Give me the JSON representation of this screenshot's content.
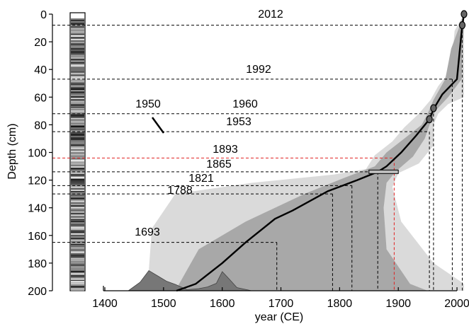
{
  "chart_data": {
    "type": "line",
    "xlabel": "year (CE)",
    "ylabel": "Depth (cm)",
    "xlim": [
      1350,
      2012
    ],
    "ylim": [
      0,
      200
    ],
    "x_ticks": [
      {
        "value": 1400,
        "label": "1400"
      },
      {
        "value": 1500,
        "label": "1500"
      },
      {
        "value": 1600,
        "label": "1600"
      },
      {
        "value": 1700,
        "label": "1700"
      },
      {
        "value": 1800,
        "label": "1800"
      },
      {
        "value": 1900,
        "label": "1900"
      },
      {
        "value": 2000,
        "label": "2000"
      }
    ],
    "y_ticks": [
      {
        "value": 0,
        "label": "0"
      },
      {
        "value": 20,
        "label": "20"
      },
      {
        "value": 40,
        "label": "40"
      },
      {
        "value": 60,
        "label": "60"
      },
      {
        "value": 80,
        "label": "80"
      },
      {
        "value": 100,
        "label": "100"
      },
      {
        "value": 120,
        "label": "120"
      },
      {
        "value": 140,
        "label": "140"
      },
      {
        "value": 160,
        "label": "160"
      },
      {
        "value": 180,
        "label": "180"
      },
      {
        "value": 200,
        "label": "200"
      }
    ],
    "age_model": {
      "median": [
        [
          2012,
          0
        ],
        [
          2009,
          8
        ],
        [
          2005,
          25
        ],
        [
          2000,
          47
        ],
        [
          1975,
          58
        ],
        [
          1961,
          68
        ],
        [
          1953,
          76
        ],
        [
          1930,
          88
        ],
        [
          1905,
          100
        ],
        [
          1880,
          110
        ],
        [
          1865,
          114
        ],
        [
          1830,
          120
        ],
        [
          1780,
          128
        ],
        [
          1720,
          142
        ],
        [
          1690,
          148
        ],
        [
          1640,
          165
        ],
        [
          1600,
          180
        ],
        [
          1555,
          195
        ],
        [
          1522,
          200
        ]
      ],
      "inner_range": {
        "young": [
          [
            2012,
            0
          ],
          [
            2012,
            8
          ],
          [
            2009,
            25
          ],
          [
            2008,
            47
          ],
          [
            1985,
            60
          ],
          [
            1963,
            70
          ],
          [
            1955,
            78
          ],
          [
            1945,
            90
          ],
          [
            1925,
            103
          ],
          [
            1895,
            114
          ],
          [
            1880,
            122
          ],
          [
            1875,
            140
          ],
          [
            1880,
            170
          ],
          [
            1920,
            195
          ],
          [
            1950,
            200
          ]
        ],
        "old": [
          [
            2012,
            0
          ],
          [
            2005,
            8
          ],
          [
            1990,
            25
          ],
          [
            1980,
            47
          ],
          [
            1960,
            62
          ],
          [
            1950,
            72
          ],
          [
            1940,
            80
          ],
          [
            1910,
            90
          ],
          [
            1880,
            100
          ],
          [
            1860,
            110
          ],
          [
            1810,
            118
          ],
          [
            1740,
            130
          ],
          [
            1640,
            150
          ],
          [
            1560,
            170
          ],
          [
            1520,
            200
          ]
        ]
      },
      "outer_range": {
        "young": [
          [
            2012,
            0
          ],
          [
            2012,
            12
          ],
          [
            2012,
            40
          ],
          [
            2012,
            60
          ],
          [
            1985,
            65
          ],
          [
            1968,
            72
          ],
          [
            1960,
            80
          ],
          [
            1960,
            95
          ],
          [
            1935,
            108
          ],
          [
            1900,
            115
          ],
          [
            1890,
            125
          ],
          [
            1905,
            150
          ],
          [
            1960,
            180
          ],
          [
            2012,
            195
          ],
          [
            2012,
            200
          ]
        ],
        "old": [
          [
            2012,
            0
          ],
          [
            1996,
            12
          ],
          [
            1990,
            40
          ],
          [
            1968,
            52
          ],
          [
            1955,
            62
          ],
          [
            1935,
            72
          ],
          [
            1910,
            82
          ],
          [
            1890,
            92
          ],
          [
            1860,
            102
          ],
          [
            1845,
            112
          ],
          [
            1790,
            116
          ],
          [
            1650,
            122
          ],
          [
            1520,
            130
          ],
          [
            1480,
            155
          ],
          [
            1475,
            185
          ],
          [
            1470,
            200
          ]
        ]
      }
    },
    "dated_points": [
      {
        "year": 2012,
        "depth": 0
      },
      {
        "year": 2009,
        "depth": 8
      },
      {
        "year": 1960,
        "depth": 68
      },
      {
        "year": 1953,
        "depth": 76
      }
    ],
    "dated_bar": {
      "year_min": 1850,
      "year_max": 1900,
      "depth": 114
    },
    "annotations": [
      {
        "label": "2012",
        "year": 2009,
        "depth": 8,
        "color": "#000000"
      },
      {
        "label": "1992",
        "year": 1992,
        "depth": 47,
        "color": "#000000"
      },
      {
        "label": "1960",
        "year": 1960,
        "depth": 72,
        "color": "#000000"
      },
      {
        "label": "1953",
        "year": 1953,
        "depth": 85,
        "color": "#000000"
      },
      {
        "label": "1950",
        "year": 1948,
        "depth": 87,
        "color": "#000000"
      },
      {
        "label": "1893",
        "year": 1893,
        "depth": 104,
        "color": "#e02020"
      },
      {
        "label": "1865",
        "year": 1865,
        "depth": 114,
        "color": "#000000"
      },
      {
        "label": "1821",
        "year": 1821,
        "depth": 124,
        "color": "#000000"
      },
      {
        "label": "1788",
        "year": 1788,
        "depth": 130,
        "color": "#000000"
      },
      {
        "label": "1693",
        "year": 1693,
        "depth": 165,
        "color": "#000000"
      }
    ],
    "calibration_pdf": [
      [
        1440,
        0
      ],
      [
        1460,
        0.4
      ],
      [
        1475,
        0.95
      ],
      [
        1490,
        0.7
      ],
      [
        1505,
        0.45
      ],
      [
        1520,
        0.3
      ],
      [
        1540,
        0.05
      ],
      [
        1560,
        0.1
      ],
      [
        1575,
        0.18
      ],
      [
        1590,
        0.35
      ],
      [
        1600,
        0.9
      ],
      [
        1612,
        0.55
      ],
      [
        1625,
        0.15
      ],
      [
        1650,
        0
      ]
    ],
    "colors": {
      "outer_band": "#dadada",
      "inner_band": "#a8a8a8",
      "median_line": "#000000",
      "pdf_fill": "#777777",
      "red_line": "#e02020",
      "point_fill": "#666666"
    }
  }
}
